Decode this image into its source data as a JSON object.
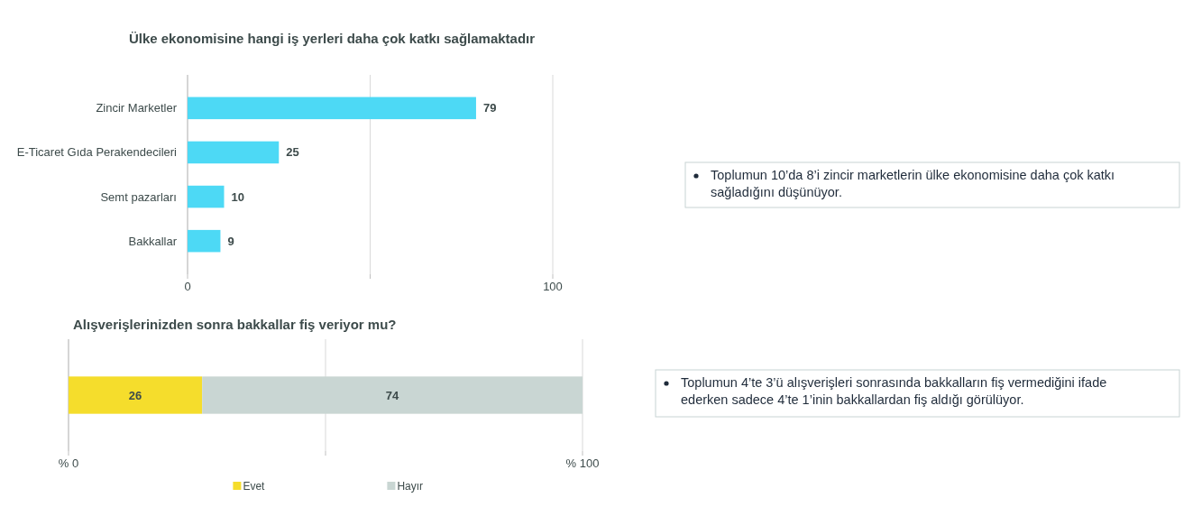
{
  "chart_data": [
    {
      "type": "bar",
      "orientation": "horizontal",
      "title": "Ülke ekonomisine hangi iş yerleri daha çok katkı sağlamaktadır",
      "categories": [
        "Zincir Marketler",
        "E-Ticaret Gıda Perakendecileri",
        "Semt pazarları",
        "Bakkallar"
      ],
      "values": [
        79,
        25,
        10,
        9
      ],
      "color": "#4dd9f5",
      "xlim": [
        0,
        100
      ],
      "xticks": [
        0,
        {
          "value": 50,
          "label": null
        },
        100
      ],
      "grid": "x",
      "data_labels": true
    },
    {
      "type": "other",
      "annotations": [
        "Toplumun 10’da 8’i zincir marketlerin ülke ekonomisine daha çok katkı sağladığını düşünüyor."
      ]
    },
    {
      "type": "bar",
      "orientation": "horizontal",
      "stacked": true,
      "title": "Alışverişlerinizden sonra bakkallar fiş veriyor mu?",
      "categories": [
        null
      ],
      "series": [
        {
          "name": "Evet",
          "color": "#f5dd2c",
          "values": [
            26
          ]
        },
        {
          "name": "Hayır",
          "color": "#c9d6d3",
          "values": [
            74
          ]
        }
      ],
      "xlim": [
        0,
        100
      ],
      "xticks": [
        {
          "value": 0,
          "label": "% 0"
        },
        {
          "value": 50,
          "label": null
        },
        {
          "value": 100,
          "label": "% 100"
        }
      ],
      "grid": "x",
      "legend": "bottom",
      "data_labels": true
    },
    {
      "type": "other",
      "annotations": [
        "Toplumun 4’te 3’ü alışverişleri sonrasında bakkalların fiş vermediğini ifade ederken sadece 4’te 1’inin bakkallardan fiş aldığı görülüyor."
      ]
    }
  ]
}
